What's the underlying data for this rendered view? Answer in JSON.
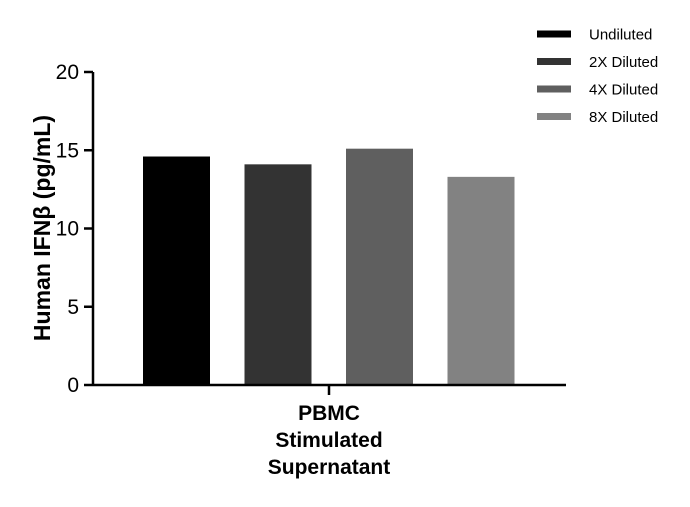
{
  "chart_data": {
    "type": "bar",
    "categories": [
      "PBMC Stimulated Supernatant"
    ],
    "category_label_lines": [
      "PBMC",
      "Stimulated",
      "Supernatant"
    ],
    "series": [
      {
        "name": "Undiluted",
        "values": [
          14.6
        ],
        "color": "#000000"
      },
      {
        "name": "2X Diluted",
        "values": [
          14.1
        ],
        "color": "#333333"
      },
      {
        "name": "4X Diluted",
        "values": [
          15.1
        ],
        "color": "#5f5f5f"
      },
      {
        "name": "8X Diluted",
        "values": [
          13.3
        ],
        "color": "#828282"
      }
    ],
    "title": "",
    "xlabel": "",
    "ylabel": "Human IFNβ (pg/mL)",
    "ylim": [
      0,
      20
    ],
    "yticks": [
      "0",
      "5",
      "10",
      "15",
      "20"
    ],
    "grid": false,
    "legend_position": "top-right"
  }
}
